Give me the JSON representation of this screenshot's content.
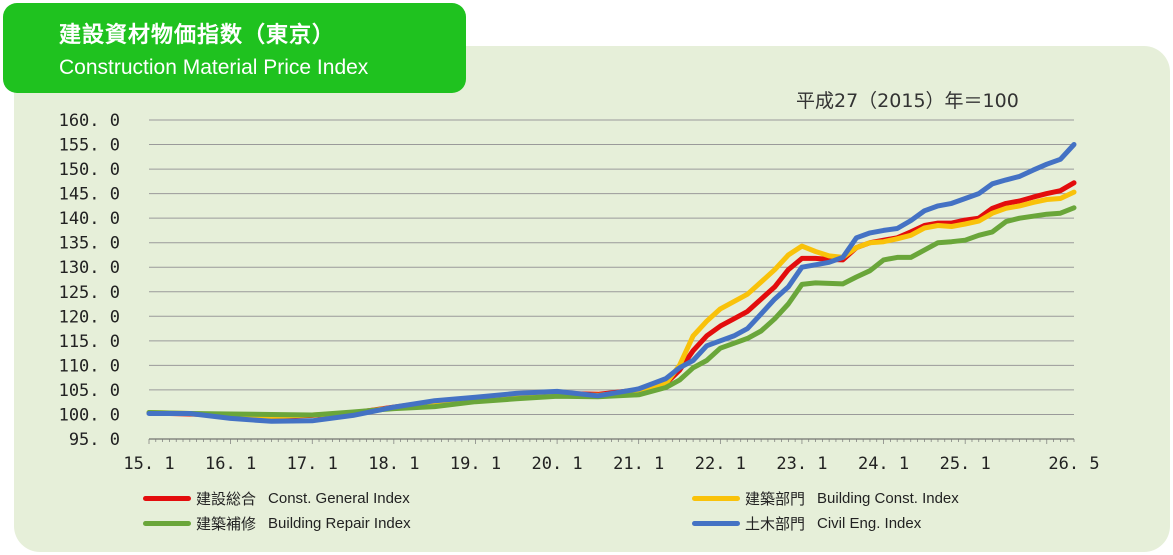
{
  "header": {
    "title_jp": "建設資材物価指数（東京）",
    "title_en": "Construction Material Price Index",
    "base_note": "平成27（2015）年＝100"
  },
  "chart_data": {
    "type": "line",
    "ylim": [
      95,
      160
    ],
    "yticks": [
      "160. 0",
      "155. 0",
      "150. 0",
      "145. 0",
      "140. 0",
      "135. 0",
      "130. 0",
      "125. 0",
      "120. 0",
      "115. 0",
      "110. 0",
      "105. 0",
      "100. 0",
      "95. 0"
    ],
    "xticks": [
      "15. 1",
      "16. 1",
      "17. 1",
      "18. 1",
      "19. 1",
      "20. 1",
      "21. 1",
      "22. 1",
      "23. 1",
      "24. 1",
      "25. 1",
      "26. 5"
    ],
    "xtick_positions": [
      0,
      12,
      24,
      36,
      48,
      60,
      72,
      84,
      96,
      108,
      120,
      136
    ],
    "grid": true,
    "legend_position": "bottom",
    "series": [
      {
        "name": "建設総合",
        "name_en": "Const. General  Index",
        "color": "#e30d0d",
        "points": [
          [
            0,
            100.3
          ],
          [
            6,
            100.1
          ],
          [
            12,
            99.8
          ],
          [
            18,
            99.5
          ],
          [
            24,
            99.8
          ],
          [
            30,
            100.3
          ],
          [
            36,
            101.5
          ],
          [
            42,
            102.6
          ],
          [
            48,
            103.3
          ],
          [
            54,
            103.8
          ],
          [
            60,
            104.3
          ],
          [
            66,
            104.1
          ],
          [
            72,
            105.0
          ],
          [
            76,
            106.3
          ],
          [
            78,
            109.0
          ],
          [
            80,
            113.0
          ],
          [
            82,
            116.0
          ],
          [
            84,
            118.0
          ],
          [
            86,
            119.5
          ],
          [
            88,
            121.0
          ],
          [
            90,
            123.5
          ],
          [
            92,
            126.0
          ],
          [
            94,
            129.5
          ],
          [
            96,
            131.8
          ],
          [
            98,
            131.8
          ],
          [
            100,
            131.6
          ],
          [
            102,
            131.5
          ],
          [
            104,
            134.0
          ],
          [
            106,
            135.0
          ],
          [
            108,
            135.5
          ],
          [
            110,
            136.0
          ],
          [
            112,
            137.2
          ],
          [
            114,
            138.5
          ],
          [
            116,
            139.0
          ],
          [
            118,
            139.0
          ],
          [
            120,
            139.6
          ],
          [
            122,
            140.0
          ],
          [
            124,
            142.0
          ],
          [
            126,
            143.0
          ],
          [
            128,
            143.5
          ],
          [
            130,
            144.3
          ],
          [
            132,
            145.0
          ],
          [
            134,
            145.6
          ],
          [
            136,
            147.2
          ]
        ]
      },
      {
        "name": "建築部門",
        "name_en": "Building Const. Index",
        "color": "#f9c20a",
        "points": [
          [
            0,
            100.4
          ],
          [
            6,
            100.2
          ],
          [
            12,
            99.9
          ],
          [
            18,
            99.6
          ],
          [
            24,
            99.9
          ],
          [
            30,
            100.3
          ],
          [
            36,
            101.4
          ],
          [
            42,
            102.5
          ],
          [
            48,
            103.2
          ],
          [
            54,
            103.6
          ],
          [
            60,
            104.1
          ],
          [
            66,
            103.9
          ],
          [
            72,
            104.8
          ],
          [
            76,
            106.3
          ],
          [
            78,
            110.0
          ],
          [
            80,
            116.0
          ],
          [
            82,
            119.0
          ],
          [
            84,
            121.5
          ],
          [
            86,
            123.0
          ],
          [
            88,
            124.5
          ],
          [
            90,
            127.0
          ],
          [
            92,
            129.5
          ],
          [
            94,
            132.5
          ],
          [
            96,
            134.3
          ],
          [
            98,
            133.2
          ],
          [
            100,
            132.3
          ],
          [
            102,
            132.0
          ],
          [
            104,
            134.0
          ],
          [
            106,
            135.0
          ],
          [
            108,
            135.2
          ],
          [
            110,
            135.8
          ],
          [
            112,
            136.5
          ],
          [
            114,
            138.0
          ],
          [
            116,
            138.5
          ],
          [
            118,
            138.3
          ],
          [
            120,
            138.8
          ],
          [
            122,
            139.4
          ],
          [
            124,
            141.0
          ],
          [
            126,
            142.0
          ],
          [
            128,
            142.5
          ],
          [
            130,
            143.2
          ],
          [
            132,
            143.8
          ],
          [
            134,
            144.0
          ],
          [
            136,
            145.3
          ]
        ]
      },
      {
        "name": "建築補修",
        "name_en": "Building Repair Index",
        "color": "#6aa63a",
        "points": [
          [
            0,
            100.4
          ],
          [
            6,
            100.2
          ],
          [
            12,
            100.1
          ],
          [
            18,
            100.0
          ],
          [
            24,
            99.9
          ],
          [
            30,
            100.5
          ],
          [
            36,
            101.2
          ],
          [
            42,
            101.6
          ],
          [
            48,
            102.6
          ],
          [
            54,
            103.2
          ],
          [
            60,
            103.7
          ],
          [
            66,
            103.6
          ],
          [
            72,
            104.0
          ],
          [
            76,
            105.5
          ],
          [
            78,
            107.0
          ],
          [
            80,
            109.5
          ],
          [
            82,
            111.0
          ],
          [
            84,
            113.5
          ],
          [
            86,
            114.5
          ],
          [
            88,
            115.5
          ],
          [
            90,
            117.0
          ],
          [
            92,
            119.5
          ],
          [
            94,
            122.5
          ],
          [
            96,
            126.5
          ],
          [
            98,
            126.8
          ],
          [
            100,
            126.7
          ],
          [
            102,
            126.6
          ],
          [
            104,
            128.0
          ],
          [
            106,
            129.3
          ],
          [
            108,
            131.5
          ],
          [
            110,
            132.0
          ],
          [
            112,
            132.0
          ],
          [
            114,
            133.5
          ],
          [
            116,
            135.0
          ],
          [
            118,
            135.2
          ],
          [
            120,
            135.5
          ],
          [
            122,
            136.5
          ],
          [
            124,
            137.2
          ],
          [
            126,
            139.3
          ],
          [
            128,
            140.0
          ],
          [
            130,
            140.4
          ],
          [
            132,
            140.8
          ],
          [
            134,
            141.0
          ],
          [
            136,
            142.1
          ]
        ]
      },
      {
        "name": "土木部門",
        "name_en": "Civil Eng. Index",
        "color": "#4472c4",
        "points": [
          [
            0,
            100.2
          ],
          [
            6,
            100.2
          ],
          [
            12,
            99.2
          ],
          [
            18,
            98.6
          ],
          [
            24,
            98.7
          ],
          [
            30,
            99.8
          ],
          [
            36,
            101.5
          ],
          [
            42,
            102.8
          ],
          [
            48,
            103.5
          ],
          [
            54,
            104.3
          ],
          [
            60,
            104.7
          ],
          [
            66,
            103.8
          ],
          [
            72,
            105.2
          ],
          [
            76,
            107.3
          ],
          [
            78,
            109.5
          ],
          [
            80,
            111.0
          ],
          [
            82,
            114.0
          ],
          [
            84,
            115.0
          ],
          [
            86,
            116.0
          ],
          [
            88,
            117.5
          ],
          [
            90,
            120.5
          ],
          [
            92,
            123.5
          ],
          [
            94,
            126.0
          ],
          [
            96,
            130.0
          ],
          [
            98,
            130.5
          ],
          [
            100,
            131.0
          ],
          [
            102,
            132.0
          ],
          [
            104,
            136.0
          ],
          [
            106,
            137.0
          ],
          [
            108,
            137.5
          ],
          [
            110,
            137.9
          ],
          [
            112,
            139.5
          ],
          [
            114,
            141.5
          ],
          [
            116,
            142.5
          ],
          [
            118,
            143.0
          ],
          [
            120,
            144.0
          ],
          [
            122,
            145.0
          ],
          [
            124,
            147.0
          ],
          [
            126,
            147.8
          ],
          [
            128,
            148.5
          ],
          [
            130,
            149.8
          ],
          [
            132,
            151.0
          ],
          [
            134,
            152.0
          ],
          [
            136,
            155.0
          ]
        ]
      }
    ]
  }
}
